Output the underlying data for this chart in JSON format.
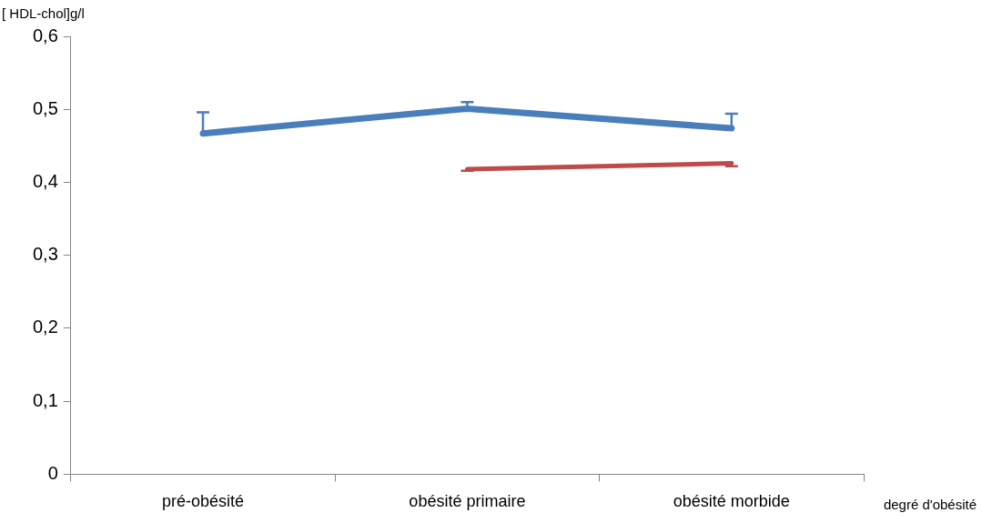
{
  "chart_data": {
    "type": "line",
    "xlabel": "degré d'obésité",
    "ylabel": "[ HDL-chol]g/l",
    "categories": [
      "pré-obésité",
      "obésité primaire",
      "obésité morbide"
    ],
    "series": [
      {
        "color": "#4a7ebb",
        "values": [
          0.467,
          0.501,
          0.474
        ],
        "errors": [
          [
            0.467,
            0.496
          ],
          [
            0.501,
            0.51
          ],
          [
            0.474,
            0.494
          ]
        ]
      },
      {
        "color": "#be4b48",
        "values": [
          null,
          0.418,
          0.426
        ],
        "errors": [
          null,
          [
            0.416,
            0.418
          ],
          [
            0.422,
            0.426
          ]
        ]
      }
    ],
    "ylim": [
      0,
      0.6
    ],
    "yticks": [
      {
        "value": 0,
        "label": "0"
      },
      {
        "value": 0.1,
        "label": "0,1"
      },
      {
        "value": 0.2,
        "label": "0,2"
      },
      {
        "value": 0.3,
        "label": "0,3"
      },
      {
        "value": 0.4,
        "label": "0,4"
      },
      {
        "value": 0.5,
        "label": "0,5"
      },
      {
        "value": 0.6,
        "label": "0,6"
      }
    ],
    "grid": false,
    "legend": false,
    "marker": "none"
  }
}
